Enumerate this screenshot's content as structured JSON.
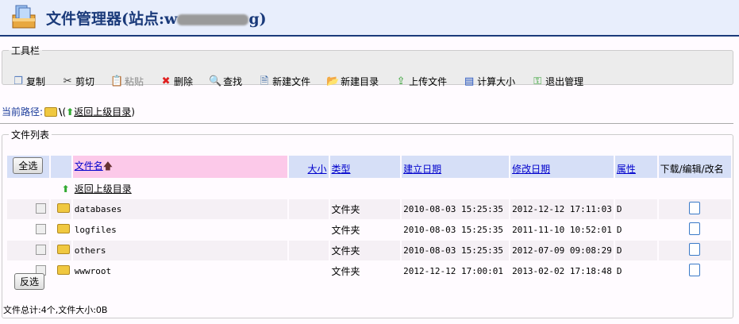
{
  "header": {
    "title_prefix": "文件管理器(站点:w",
    "title_suffix": "g)"
  },
  "toolbar": {
    "legend": "工具栏",
    "items": [
      {
        "label": "复制",
        "icon": "copy-icon",
        "enabled": true
      },
      {
        "label": "剪切",
        "icon": "scissors-icon",
        "enabled": true
      },
      {
        "label": "粘贴",
        "icon": "paste-icon",
        "enabled": false
      },
      {
        "label": "删除",
        "icon": "delete-x-icon",
        "enabled": true
      },
      {
        "label": "查找",
        "icon": "magnifier-icon",
        "enabled": true
      },
      {
        "label": "新建文件",
        "icon": "new-file-icon",
        "enabled": true
      },
      {
        "label": "新建目录",
        "icon": "new-folder-icon",
        "enabled": true
      },
      {
        "label": "上传文件",
        "icon": "upload-icon",
        "enabled": true
      },
      {
        "label": "计算大小",
        "icon": "calculator-icon",
        "enabled": true
      },
      {
        "label": "退出管理",
        "icon": "key-exit-icon",
        "enabled": true
      }
    ]
  },
  "path": {
    "label": "当前路径:",
    "current": "\\",
    "open_paren": "(",
    "back": "返回上级目录",
    "close_paren": ")"
  },
  "filelist": {
    "legend": "文件列表",
    "select_all": "全选",
    "invert": "反选",
    "columns": {
      "name": "文件名",
      "size": "大小",
      "type": "类型",
      "created": "建立日期",
      "modified": "修改日期",
      "attr": "属性",
      "actions": "下载/编辑/改名"
    },
    "back": "返回上级目录",
    "rows": [
      {
        "name": "databases",
        "type": "文件夹",
        "created": "2010-08-03 15:25:35",
        "modified": "2012-12-12 17:11:03",
        "attr": "D"
      },
      {
        "name": "logfiles",
        "type": "文件夹",
        "created": "2010-08-03 15:25:35",
        "modified": "2011-11-10 10:52:01",
        "attr": "D"
      },
      {
        "name": "others",
        "type": "文件夹",
        "created": "2010-08-03 15:25:35",
        "modified": "2012-07-09 09:08:29",
        "attr": "D"
      },
      {
        "name": "wwwroot",
        "type": "文件夹",
        "created": "2012-12-12 17:00:01",
        "modified": "2013-02-02 17:18:48",
        "attr": "D"
      }
    ],
    "summary": "文件总计:4个,文件大小:0B"
  }
}
